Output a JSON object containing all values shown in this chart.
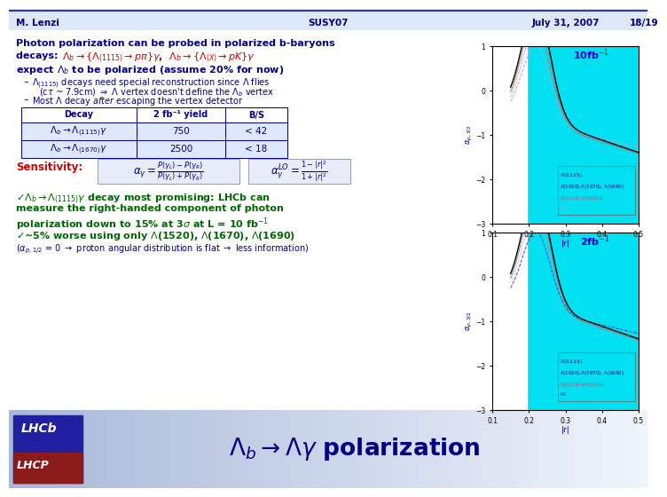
{
  "title": "\\Lambda_b \\rightarrow \\Lambda\\gamma polarization",
  "header_bg_left": "#a8b8d8",
  "header_bg_right": "#dce8f8",
  "logo_bg_blue": "#2020a0",
  "logo_bg_red": "#8b1a1a",
  "slide_bg": "#ffffff",
  "footer_bg": "#dde8f8",
  "footer_line_color": "#3333aa",
  "title_color": "#000080",
  "body_text_color": "#000080",
  "red_text_color": "#cc0000",
  "green_text_color": "#006600",
  "footer_text_color": "#000080",
  "table_bg_header": "#ffffff",
  "table_bg_rows": "#dde8ff",
  "table_border": "#000080",
  "plot_bg": "#00e0f0",
  "plot_outer_bg": "#f0f0f0",
  "footer_left": "M. Lenzi",
  "footer_center": "SUSY07",
  "footer_right": "July 31, 2007",
  "footer_page": "18/19",
  "label_2fb": "2fb-1",
  "label_10fb": "10fb-1"
}
